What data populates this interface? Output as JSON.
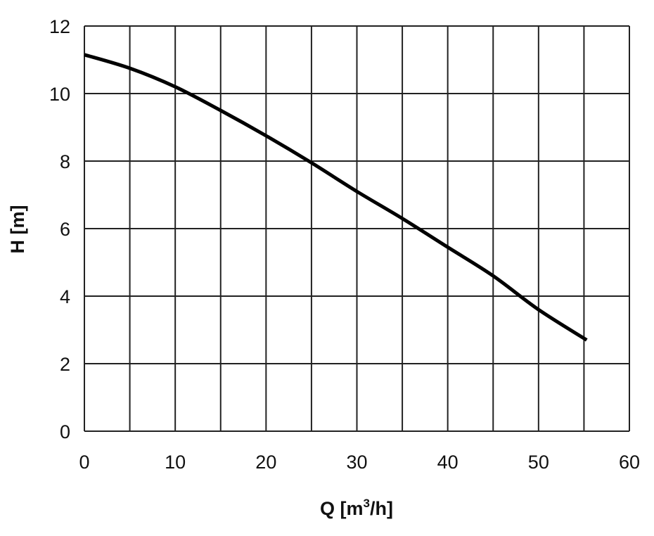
{
  "chart_data": {
    "type": "line",
    "title": "",
    "xlabel": "Q [m",
    "xlabel_sup": "3",
    "xlabel_suffix": "/h]",
    "ylabel": "H [m]",
    "xlim": [
      0,
      60
    ],
    "ylim": [
      0,
      12
    ],
    "xticks": [
      "0",
      "10",
      "20",
      "30",
      "40",
      "50",
      "60"
    ],
    "yticks": [
      "0",
      "2",
      "4",
      "6",
      "8",
      "10",
      "12"
    ],
    "x_gridlines": [
      0,
      5,
      10,
      15,
      20,
      25,
      30,
      35,
      40,
      45,
      50,
      55,
      60
    ],
    "y_gridlines": [
      0,
      2,
      4,
      6,
      8,
      10,
      12
    ],
    "grid": true,
    "legend": "none",
    "series": [
      {
        "x": [
          0,
          5,
          10,
          15,
          20,
          25,
          30,
          35,
          40,
          45,
          50,
          55.3
        ],
        "values": [
          11.15,
          10.75,
          10.2,
          9.5,
          8.75,
          7.95,
          7.1,
          6.3,
          5.45,
          4.6,
          3.6,
          2.7
        ]
      }
    ],
    "colors": {
      "line": "#000000",
      "grid": "#222222",
      "background": "#ffffff"
    }
  }
}
